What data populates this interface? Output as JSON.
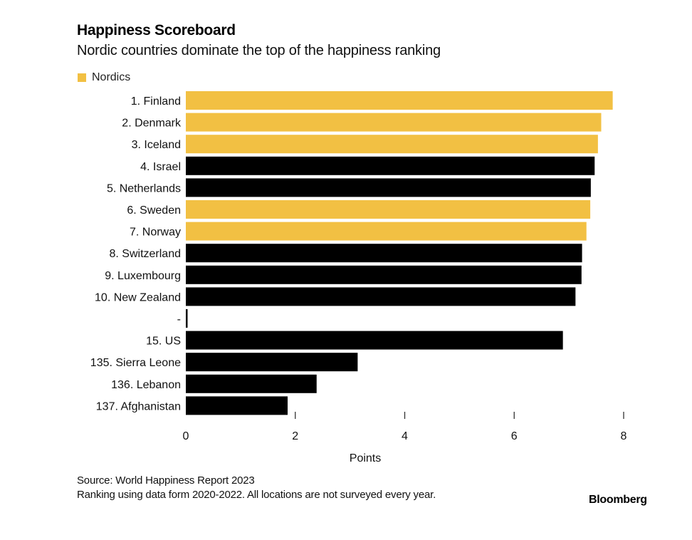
{
  "chart_data": {
    "type": "bar",
    "orientation": "horizontal",
    "title": "Happiness Scoreboard",
    "subtitle": "Nordic countries dominate the top of the happiness ranking",
    "xlabel": "Points",
    "ylabel": "",
    "xlim": [
      0,
      8
    ],
    "x_ticks": [
      0,
      2,
      4,
      6,
      8
    ],
    "grid": false,
    "legend": {
      "position": "top-left",
      "entries": [
        {
          "label": "Nordics",
          "color": "#f2c043"
        }
      ]
    },
    "categories": [
      "1. Finland",
      "2. Denmark",
      "3. Iceland",
      "4. Israel",
      "5. Netherlands",
      "6. Sweden",
      "7. Norway",
      "8. Switzerland",
      "9. Luxembourg",
      "10. New Zealand",
      "-",
      "15. US",
      "135. Sierra Leone",
      "136. Lebanon",
      "137. Afghanistan"
    ],
    "values": [
      7.8,
      7.59,
      7.53,
      7.47,
      7.4,
      7.39,
      7.32,
      7.24,
      7.23,
      7.12,
      0.03,
      6.89,
      3.14,
      2.39,
      1.86
    ],
    "nordic": [
      true,
      true,
      true,
      false,
      false,
      true,
      true,
      false,
      false,
      false,
      false,
      false,
      false,
      false,
      false
    ],
    "colors": {
      "nordic": "#f2c043",
      "other": "#000000"
    }
  },
  "footer": {
    "source": "Source: World Happiness Report 2023",
    "note": "Ranking using data form 2020-2022. All locations are not surveyed every year.",
    "brand": "Bloomberg"
  }
}
